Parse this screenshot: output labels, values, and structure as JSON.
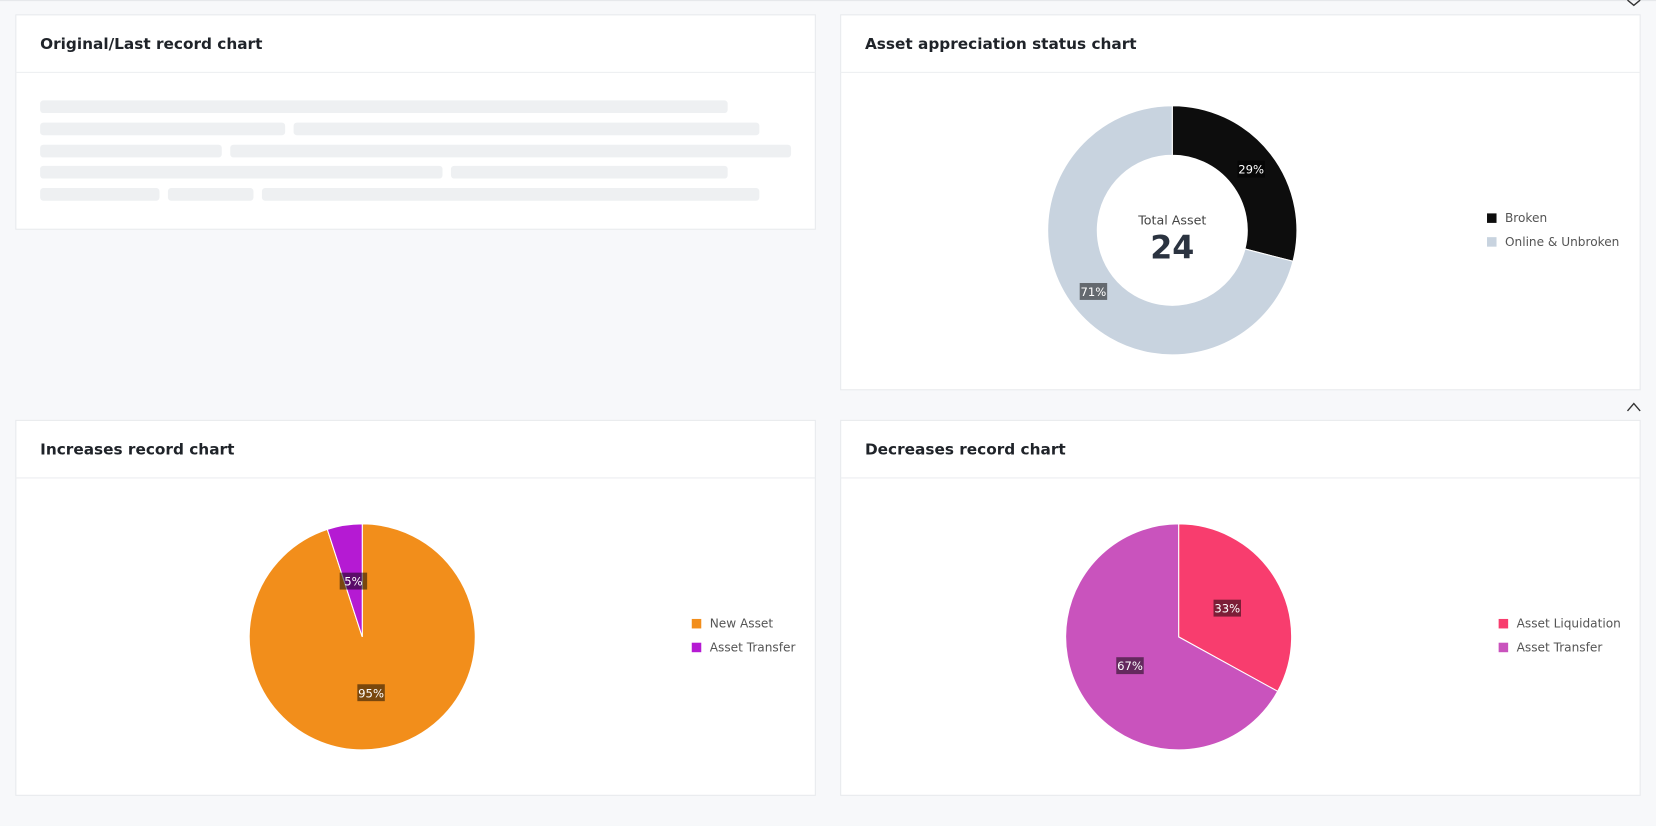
{
  "cards": [
    {
      "title": "Original/Last record chart"
    },
    {
      "title": "Asset appreciation status chart",
      "chart": {
        "type": "donut",
        "center_label": "Total Asset",
        "center_value": 24,
        "categories": [
          "Broken",
          "Online & Unbroken"
        ],
        "values": [
          29,
          71
        ],
        "value_labels": [
          "29%",
          "71%"
        ],
        "colors": [
          "#0d0d0d",
          "#c8d3df"
        ]
      }
    },
    {
      "title": "Increases record chart",
      "chart": {
        "type": "pie",
        "categories": [
          "New Asset",
          "Asset Transfer"
        ],
        "values": [
          95,
          5
        ],
        "value_labels": [
          "95%",
          "5%"
        ],
        "colors": [
          "#f28e1b",
          "#b51ad3"
        ]
      }
    },
    {
      "title": "Decreases record chart",
      "chart": {
        "type": "pie",
        "categories": [
          "Asset Liquidation",
          "Asset Transfer"
        ],
        "values": [
          33,
          67
        ],
        "value_labels": [
          "33%",
          "67%"
        ],
        "colors": [
          "#f83d6e",
          "#c953bd"
        ]
      }
    }
  ]
}
